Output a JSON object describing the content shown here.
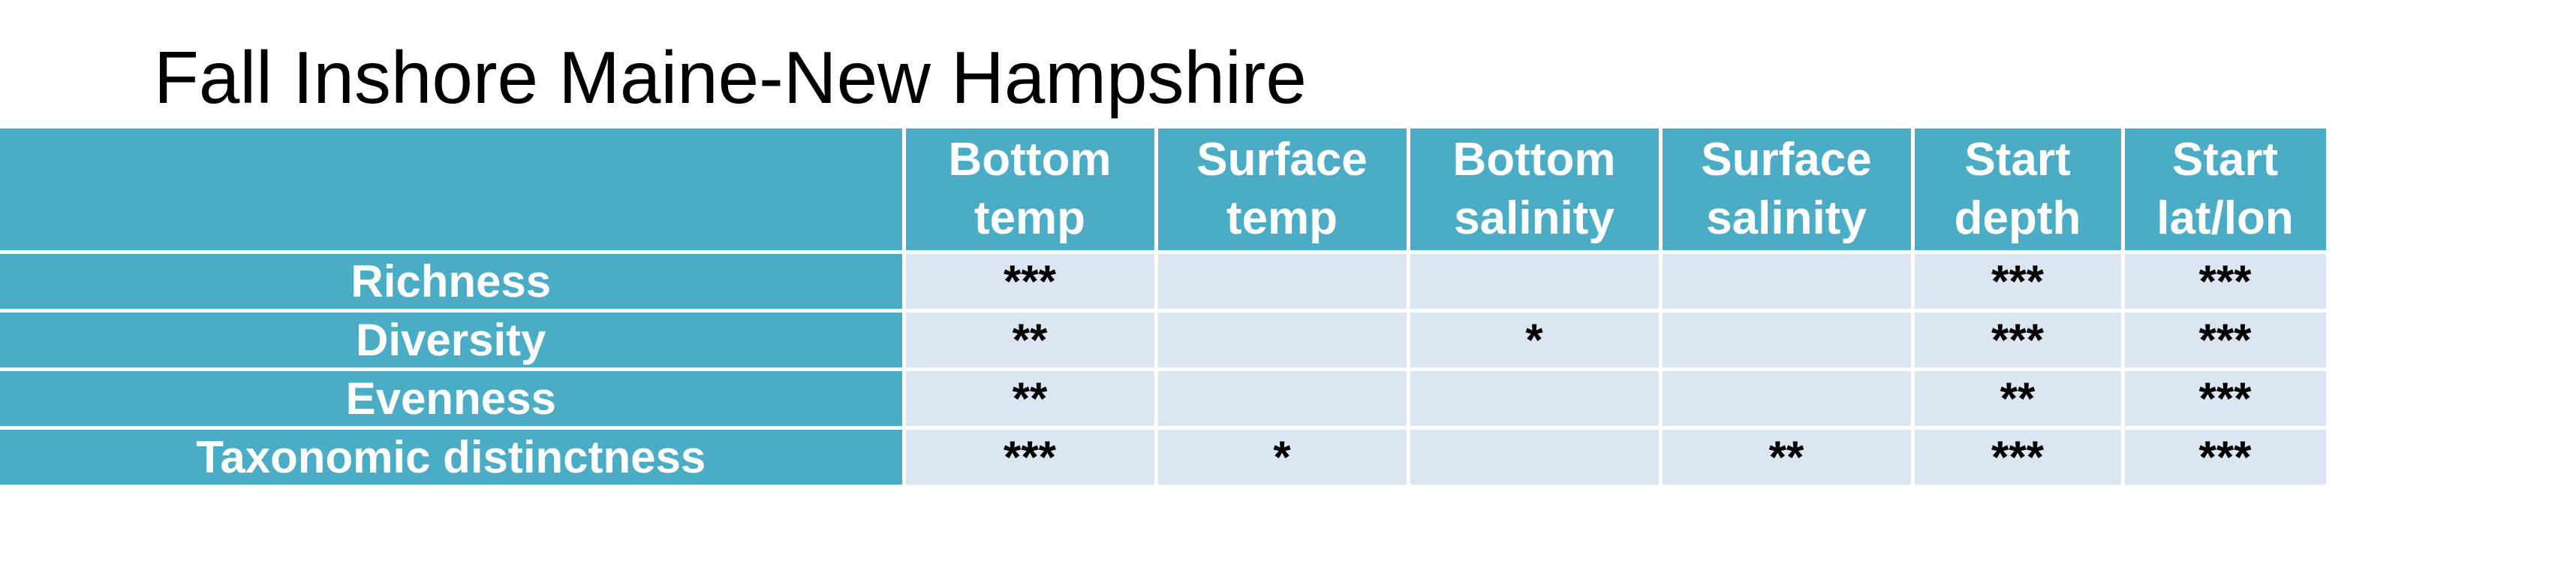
{
  "title": "Fall Inshore Maine-New Hampshire",
  "table": {
    "header": {
      "blank": "",
      "columns": [
        {
          "line1": "Bottom",
          "line2": "temp"
        },
        {
          "line1": "Surface",
          "line2": "temp"
        },
        {
          "line1": "Bottom",
          "line2": "salinity"
        },
        {
          "line1": "Surface",
          "line2": "salinity"
        },
        {
          "line1": "Start",
          "line2": "depth"
        },
        {
          "line1": "Start",
          "line2": "lat/lon"
        }
      ]
    },
    "rows": [
      {
        "label": "Richness",
        "cells": [
          "***",
          "",
          "",
          "",
          "***",
          "***"
        ]
      },
      {
        "label": "Diversity",
        "cells": [
          "**",
          "",
          "*",
          "",
          "***",
          "***"
        ]
      },
      {
        "label": "Evenness",
        "cells": [
          "**",
          "",
          "",
          "",
          "**",
          "***"
        ]
      },
      {
        "label": "Taxonomic distinctness",
        "cells": [
          "***",
          "*",
          "",
          "**",
          "***",
          "***"
        ]
      }
    ]
  },
  "colors": {
    "header_fill": "#4bacc6",
    "cell_fill": "#dce6f2",
    "header_text": "#ffffff",
    "cell_text": "#000000"
  }
}
